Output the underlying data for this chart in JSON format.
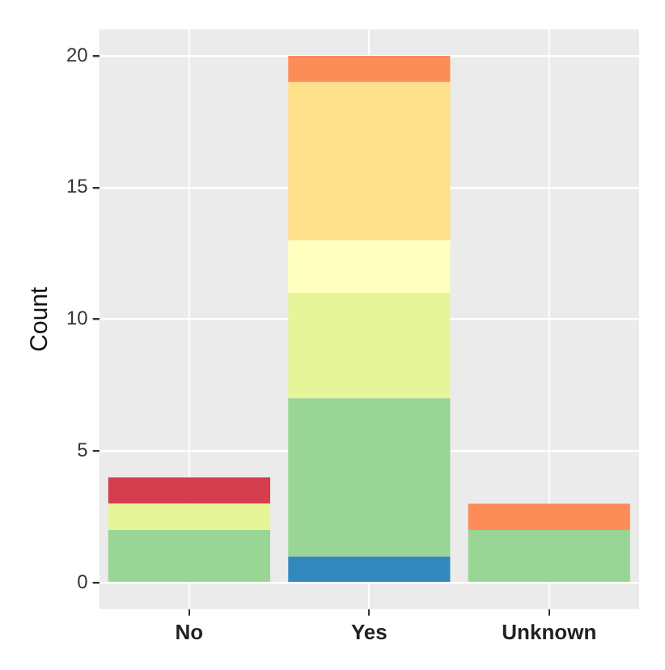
{
  "chart_data": {
    "type": "bar",
    "stacked": true,
    "ylabel": "Count",
    "categories": [
      "No",
      "Yes",
      "Unknown"
    ],
    "series": [
      {
        "color": "#3288bd",
        "values": [
          null,
          1,
          null
        ]
      },
      {
        "color": "#99d594",
        "values": [
          2,
          6,
          2
        ]
      },
      {
        "color": "#e6f598",
        "values": [
          1,
          4,
          null
        ]
      },
      {
        "color": "#ffffbf",
        "values": [
          null,
          2,
          null
        ]
      },
      {
        "color": "#fee08b",
        "values": [
          null,
          6,
          null
        ]
      },
      {
        "color": "#fc8d59",
        "values": [
          null,
          1,
          1
        ]
      },
      {
        "color": "#d53e4f",
        "values": [
          1,
          null,
          null
        ]
      }
    ],
    "ylim": [
      -1,
      21
    ],
    "yticks": [
      0,
      5,
      10,
      15,
      20
    ],
    "grid": true,
    "legend": false
  }
}
